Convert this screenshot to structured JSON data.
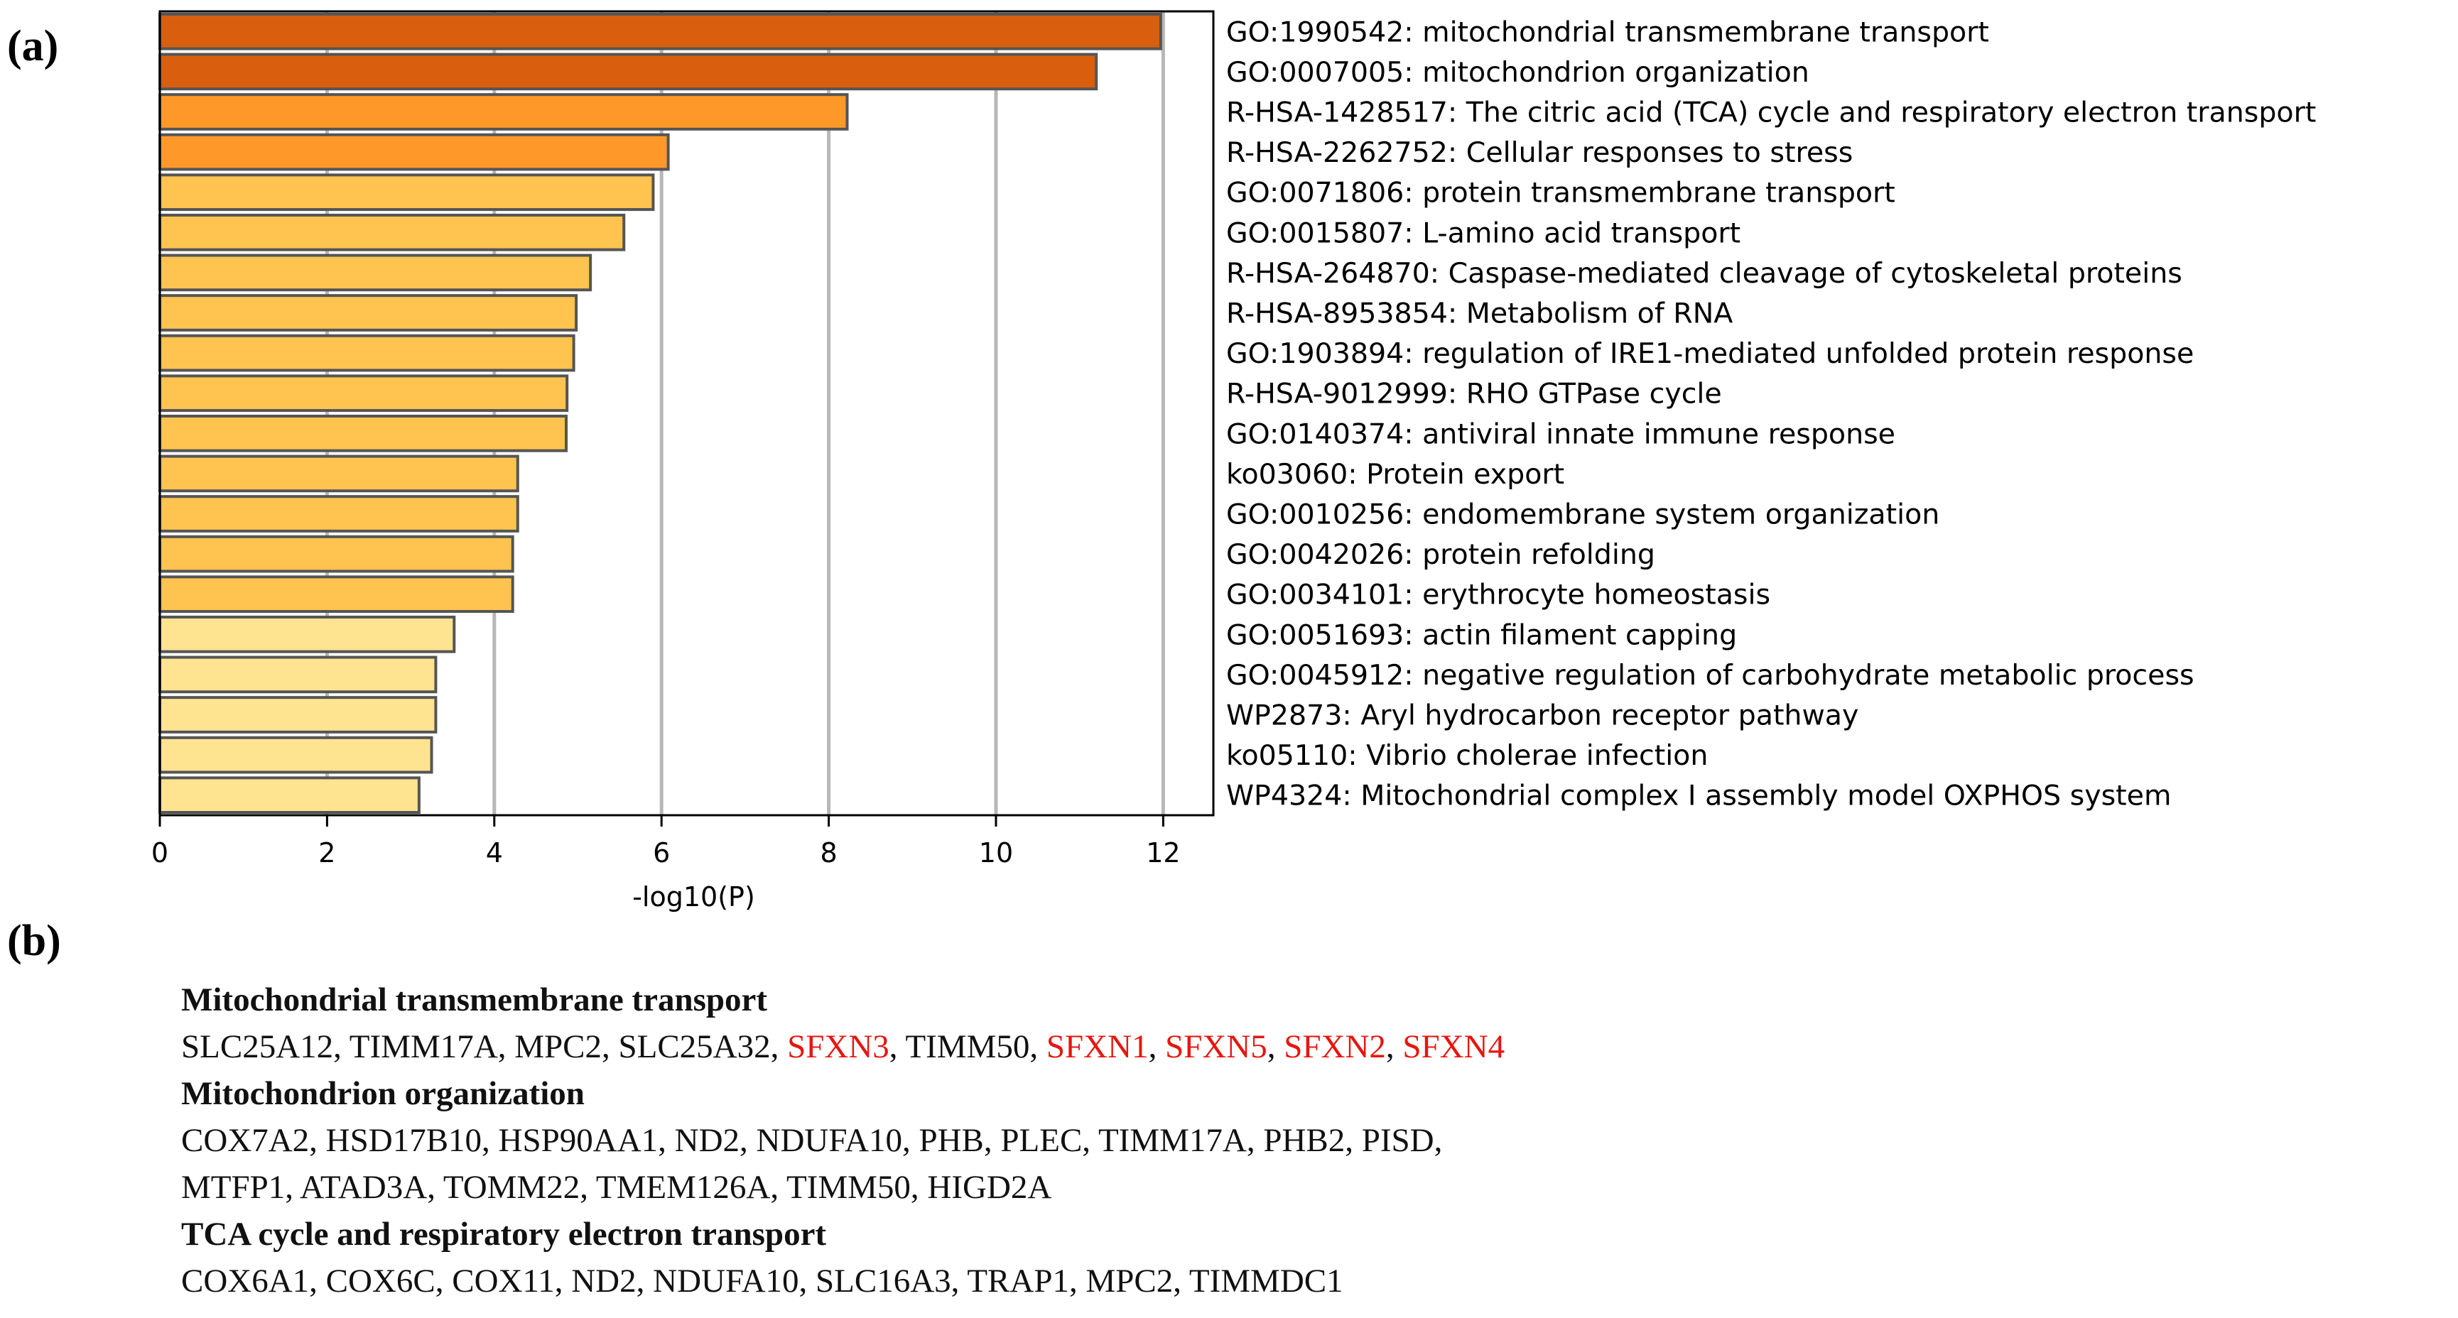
{
  "panel_labels": {
    "a": "(a)",
    "b": "(b)"
  },
  "chart_data": {
    "type": "bar",
    "orientation": "horizontal",
    "xlabel": "-log10(P)",
    "xlim": [
      0,
      12.6
    ],
    "xticks": [
      0,
      2,
      4,
      6,
      8,
      10,
      12
    ],
    "grid": "vertical",
    "categories": [
      "GO:1990542: mitochondrial transmembrane transport",
      "GO:0007005: mitochondrion organization",
      "R-HSA-1428517: The citric acid (TCA) cycle and respiratory electron transport",
      "R-HSA-2262752: Cellular responses to stress",
      "GO:0071806: protein transmembrane transport",
      "GO:0015807: L-amino acid transport",
      "R-HSA-264870: Caspase-mediated cleavage of cytoskeletal proteins",
      "R-HSA-8953854: Metabolism of RNA",
      "GO:1903894: regulation of IRE1-mediated unfolded protein response",
      "R-HSA-9012999: RHO GTPase cycle",
      "GO:0140374: antiviral innate immune response",
      "ko03060: Protein export",
      "GO:0010256: endomembrane system organization",
      "GO:0042026: protein refolding",
      "GO:0034101: erythrocyte homeostasis",
      "GO:0051693: actin filament capping",
      "GO:0045912: negative regulation of carbohydrate metabolic process",
      "WP2873: Aryl hydrocarbon receptor pathway",
      "ko05110: Vibrio cholerae infection",
      "WP4324: Mitochondrial complex I assembly model OXPHOS system"
    ],
    "values": [
      11.97,
      11.2,
      8.22,
      6.08,
      5.9,
      5.55,
      5.15,
      4.98,
      4.95,
      4.87,
      4.86,
      4.28,
      4.28,
      4.22,
      4.22,
      3.52,
      3.3,
      3.3,
      3.25,
      3.1
    ],
    "colors": [
      "#d95f0e",
      "#d95f0e",
      "#fe9929",
      "#fe9929",
      "#fec44f",
      "#fec44f",
      "#fec44f",
      "#fec44f",
      "#fec44f",
      "#fec44f",
      "#fec44f",
      "#fec44f",
      "#fec44f",
      "#fec44f",
      "#fec44f",
      "#fee391",
      "#fee391",
      "#fee391",
      "#fee391",
      "#fee391"
    ],
    "bar_edge_color": "#555555"
  },
  "gene_sections": [
    {
      "title": "Mitochondrial transmembrane transport",
      "lines": [
        [
          {
            "text": "SLC25A12",
            "red": false
          },
          {
            "text": ", ",
            "red": false
          },
          {
            "text": "TIMM17A",
            "red": false
          },
          {
            "text": ", ",
            "red": false
          },
          {
            "text": "MPC2",
            "red": false
          },
          {
            "text": ", ",
            "red": false
          },
          {
            "text": "SLC25A32",
            "red": false
          },
          {
            "text": ", ",
            "red": false
          },
          {
            "text": "SFXN3",
            "red": true
          },
          {
            "text": ", ",
            "red": false
          },
          {
            "text": "TIMM50",
            "red": false
          },
          {
            "text": ", ",
            "red": false
          },
          {
            "text": "SFXN1",
            "red": true
          },
          {
            "text": ", ",
            "red": false
          },
          {
            "text": "SFXN5",
            "red": true
          },
          {
            "text": ", ",
            "red": false
          },
          {
            "text": "SFXN2",
            "red": true
          },
          {
            "text": ", ",
            "red": false
          },
          {
            "text": "SFXN4",
            "red": true
          }
        ]
      ]
    },
    {
      "title": "Mitochondrion organization",
      "lines": [
        [
          {
            "text": "COX7A2, HSD17B10, HSP90AA1, ND2, NDUFA10, PHB, PLEC, TIMM17A, PHB2, PISD,",
            "red": false
          }
        ],
        [
          {
            "text": "MTFP1, ATAD3A, TOMM22, TMEM126A, TIMM50, HIGD2A",
            "red": false
          }
        ]
      ]
    },
    {
      "title": "TCA cycle and respiratory electron transport",
      "lines": [
        [
          {
            "text": "COX6A1, COX6C, COX11, ND2, NDUFA10, SLC16A3, TRAP1, MPC2, TIMMDC1",
            "red": false
          }
        ]
      ]
    }
  ]
}
